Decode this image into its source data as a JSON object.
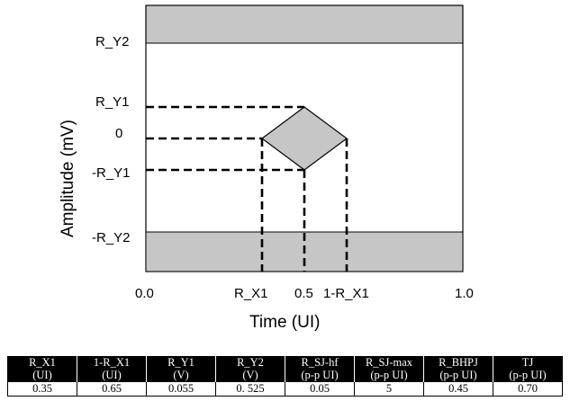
{
  "diagram": {
    "y_axis_title": "Amplitude (mV)",
    "x_axis_title": "Time (UI)",
    "y_labels": [
      "R_Y2",
      "R_Y1",
      "0",
      "-R_Y1",
      "-R_Y2"
    ],
    "x_labels": [
      "0.0",
      "R_X1",
      "0.5",
      "1-R_X1",
      "1.0"
    ],
    "colors": {
      "shade": "#c6c6c6",
      "line": "#000000"
    }
  },
  "table": {
    "headers": [
      [
        "R_X1",
        "(UI)"
      ],
      [
        "1-R_X1",
        "(UI)"
      ],
      [
        "R_Y1",
        "(V)"
      ],
      [
        "R_Y2",
        "(V)"
      ],
      [
        "R_SJ-hf",
        "(p-p UI)"
      ],
      [
        "R_SJ-max",
        "(p-p UI)"
      ],
      [
        "R_BHPJ",
        "(p-p UI)"
      ],
      [
        "TJ",
        "(p-p UI)"
      ]
    ],
    "values": [
      "0.35",
      "0.65",
      "0.055",
      "0. 525",
      "0.05",
      "5",
      "0.45",
      "0.70"
    ]
  }
}
